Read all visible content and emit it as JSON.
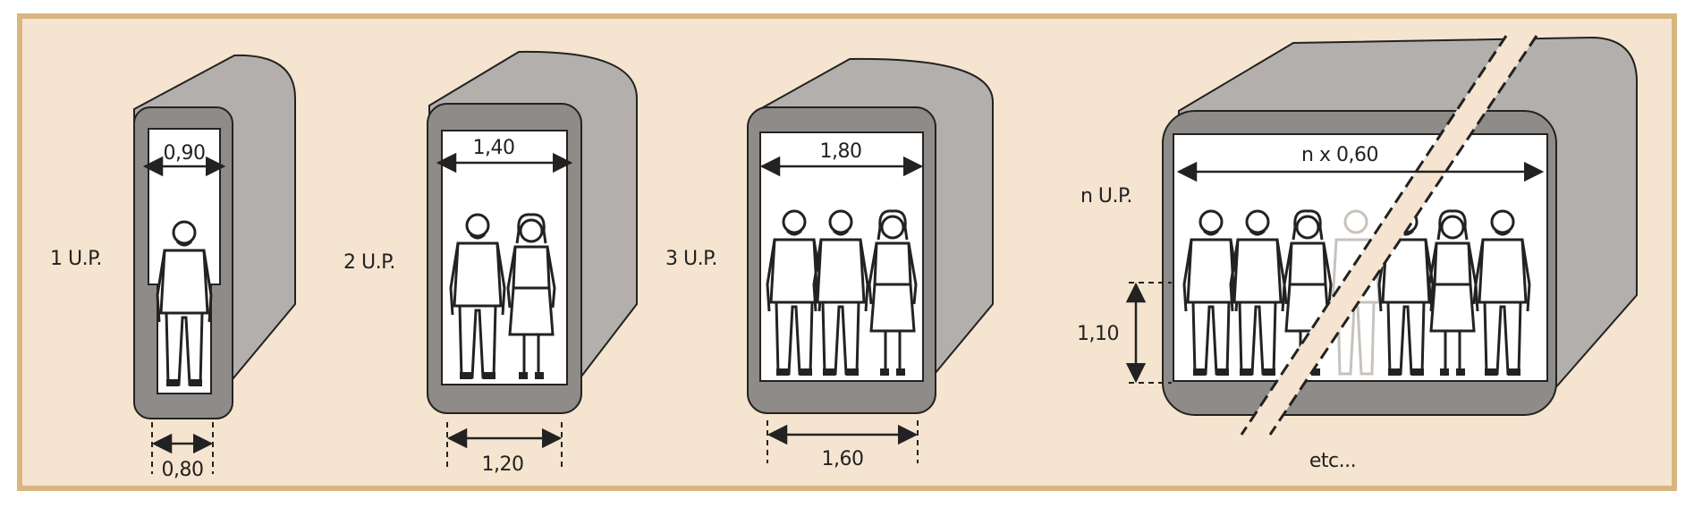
{
  "panels": [
    {
      "label": "1 U.P.",
      "top_width": "0,90",
      "bottom_width": "0,80",
      "persons": [
        "man"
      ]
    },
    {
      "label": "2 U.P.",
      "top_width": "1,40",
      "bottom_width": "1,20",
      "persons": [
        "man",
        "woman"
      ]
    },
    {
      "label": "3 U.P.",
      "top_width": "1,80",
      "bottom_width": "1,60",
      "persons": [
        "man",
        "man",
        "woman"
      ]
    },
    {
      "label": "n U.P.",
      "top_width": "n x 0,60",
      "height": "1,10",
      "footer": "etc...",
      "persons": [
        "man",
        "man",
        "woman",
        "ghost",
        "man",
        "woman",
        "man"
      ]
    }
  ],
  "colors": {
    "background": "#f5e4cf",
    "frame": "#d8b680",
    "tunnel_face": "#8f8b88",
    "tunnel_side": "#b3afac",
    "interior": "#ffffff",
    "ink": "#222222"
  },
  "icons": [
    "person-man-icon",
    "person-woman-icon"
  ]
}
